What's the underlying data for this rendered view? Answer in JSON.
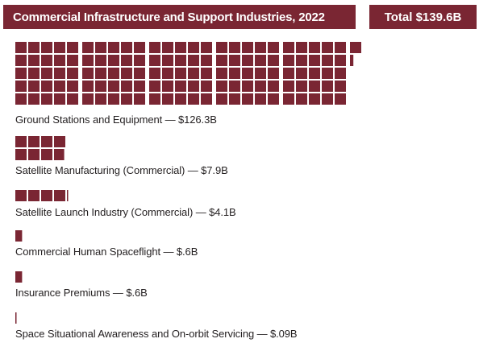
{
  "header": {
    "title": "Commercial Infrastructure and Support Industries, 2022",
    "total": "Total $139.6B"
  },
  "chart_data": {
    "type": "waffle",
    "title": "Commercial Infrastructure and Support Industries, 2022",
    "total_label": "Total $139.6B",
    "total_value": 139.6,
    "unit": "$B",
    "square_value": 1,
    "mark_color": "#7a2633",
    "categories": [
      {
        "label": "Ground Stations and Equipment — $126.3B",
        "name": "Ground Stations and Equipment",
        "value": 126.3
      },
      {
        "label": "Satellite Manufacturing (Commercial) — $7.9B",
        "name": "Satellite Manufacturing (Commercial)",
        "value": 7.9
      },
      {
        "label": "Satellite Launch Industry (Commercial) — $4.1B",
        "name": "Satellite Launch Industry (Commercial)",
        "value": 4.1
      },
      {
        "label": "Commercial Human Spaceflight — $.6B",
        "name": "Commercial Human Spaceflight",
        "value": 0.6
      },
      {
        "label": "Insurance Premiums — $.6B",
        "name": "Insurance Premiums",
        "value": 0.6
      },
      {
        "label": "Space Situational Awareness and On-orbit Servicing — $.09B",
        "name": "Space Situational Awareness and On-orbit Servicing",
        "value": 0.09
      }
    ]
  }
}
